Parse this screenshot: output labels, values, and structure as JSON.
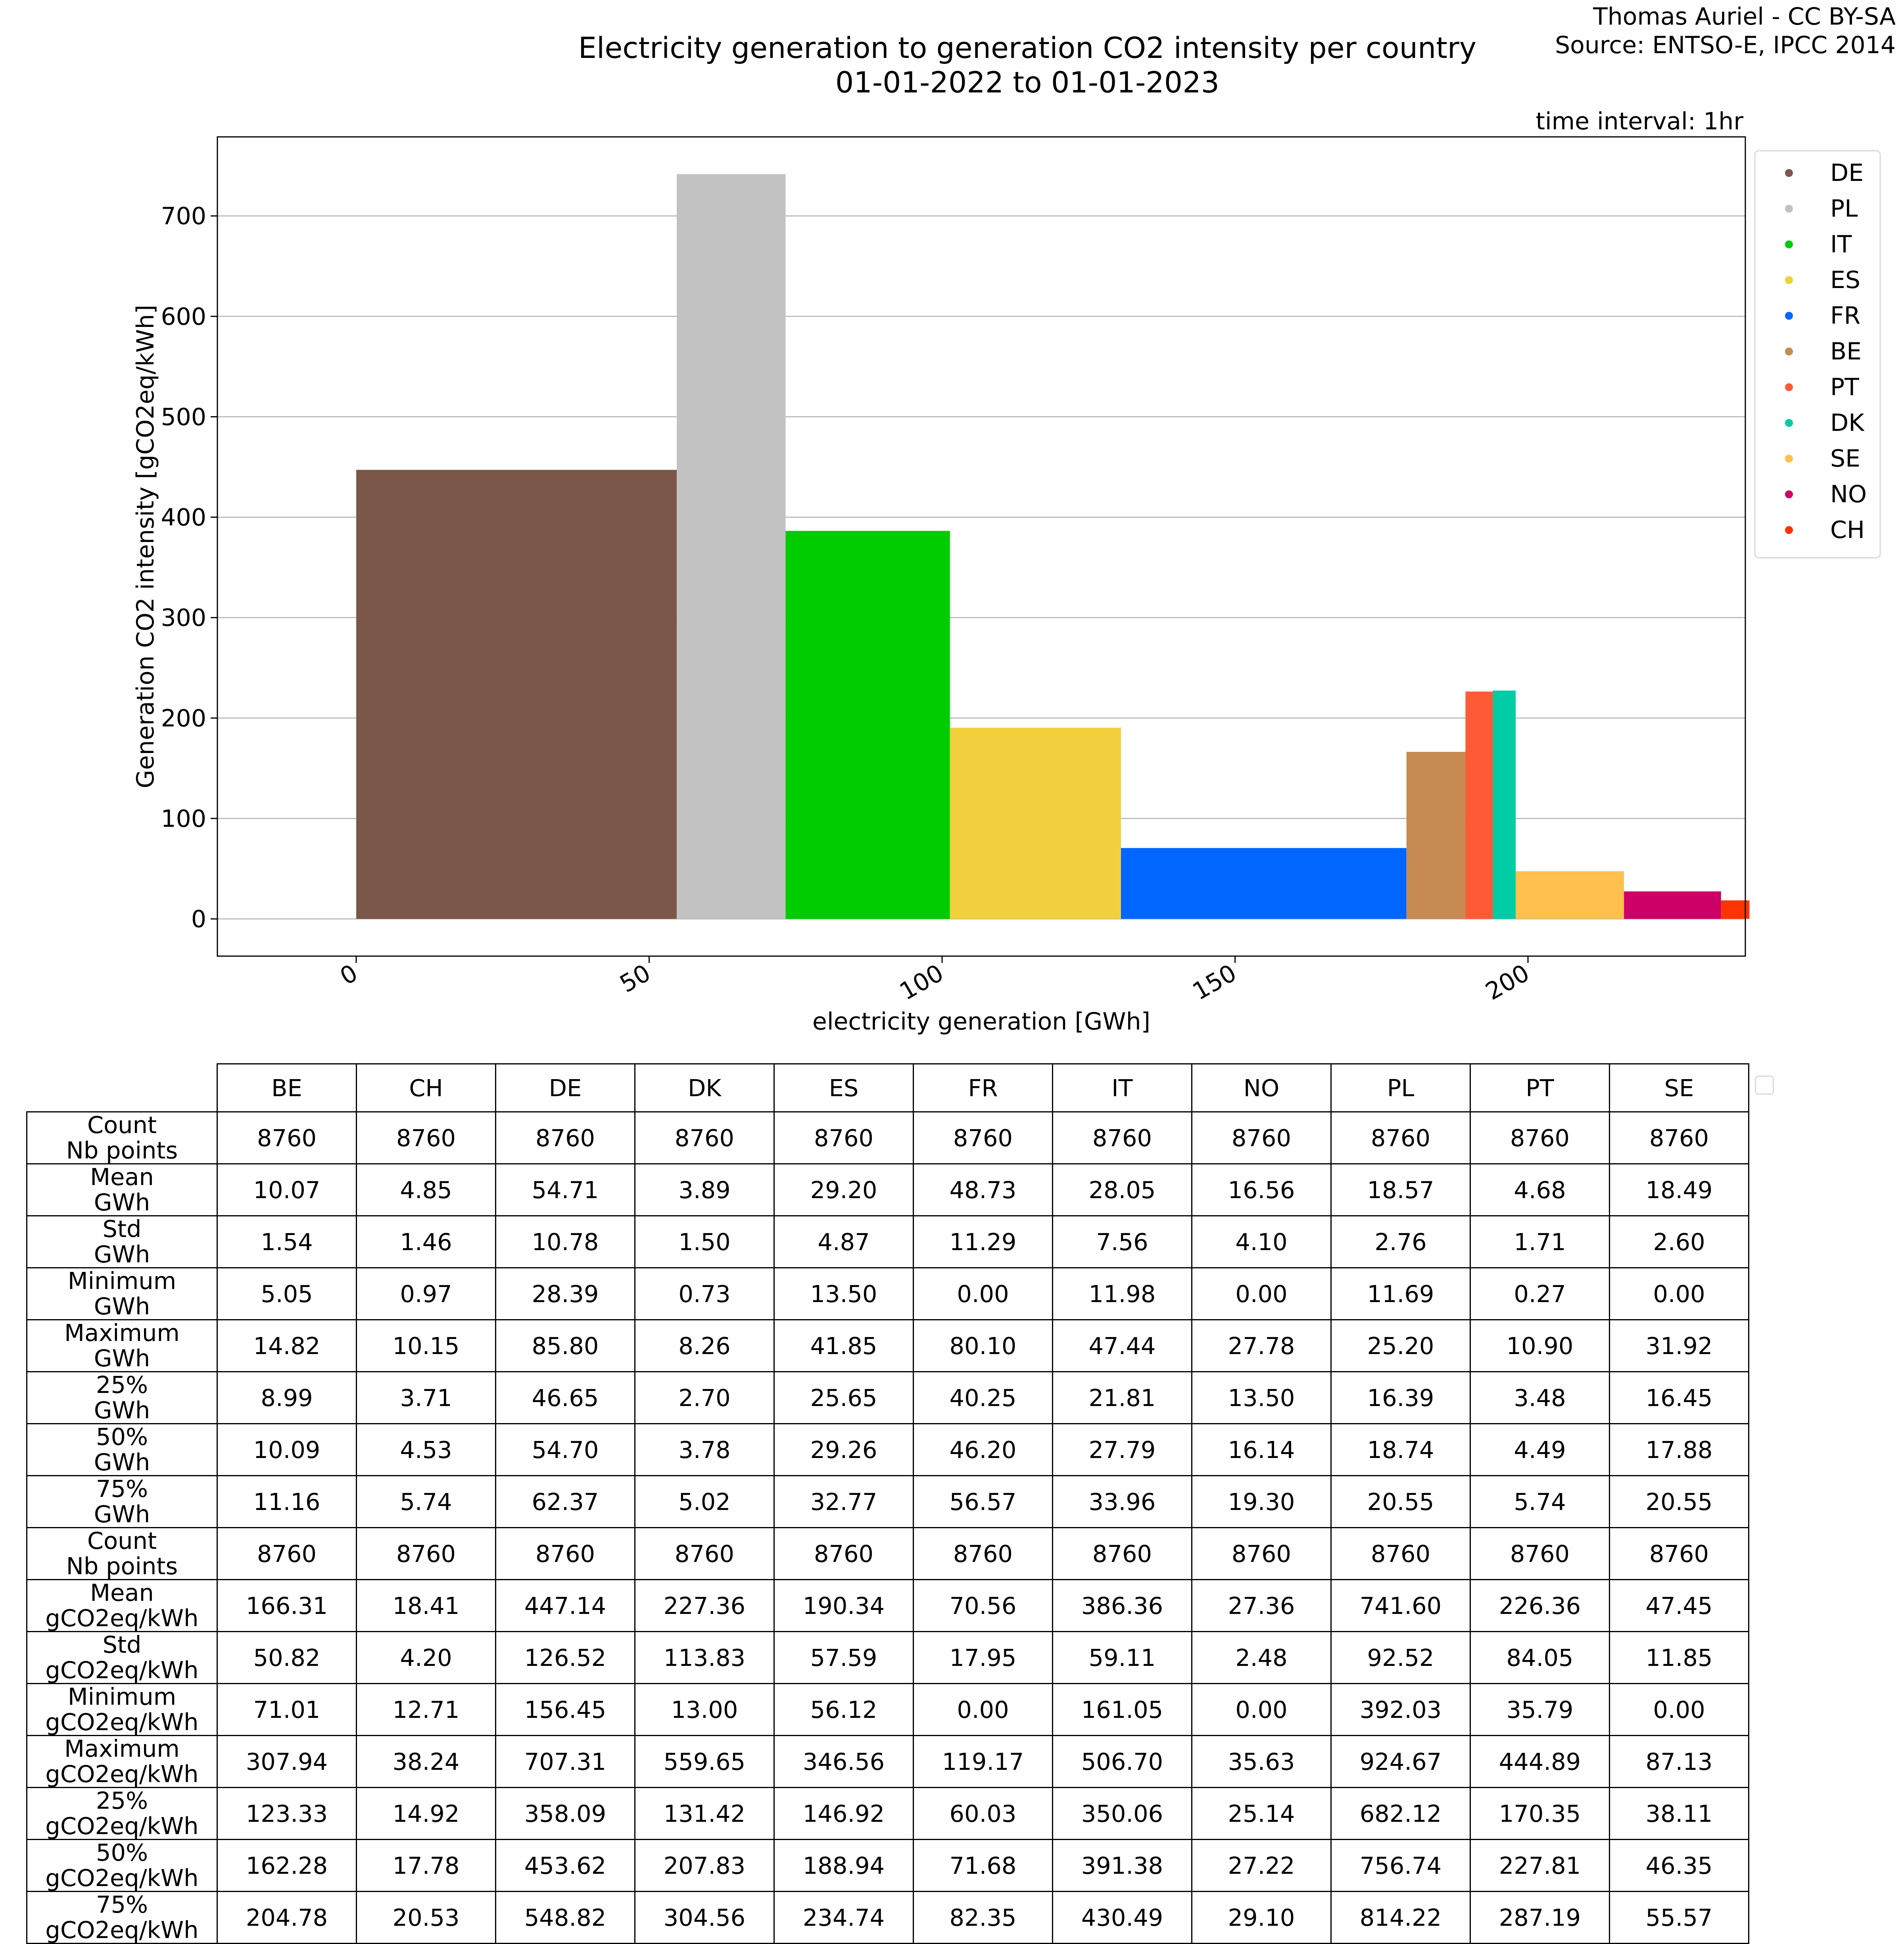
{
  "credit": {
    "line1": "Thomas Auriel - CC BY-SA",
    "line2": "Source: ENTSO-E, IPCC 2014"
  },
  "title": {
    "line1": "Electricity generation to generation CO2 intensity per country",
    "line2": "01-01-2022 to 01-01-2023"
  },
  "time_interval": "time interval: 1hr",
  "chart_data": {
    "type": "bar",
    "xlabel": "electricity generation [GWh]",
    "ylabel": "Generation CO2 intensity [gCO2eq/kWh]",
    "xlim": [
      -23.7,
      237.1
    ],
    "ylim": [
      -37.1,
      778.7
    ],
    "x_ticks": [
      0,
      50,
      100,
      150,
      200
    ],
    "y_ticks": [
      0,
      100,
      200,
      300,
      400,
      500,
      600,
      700
    ],
    "grid": "horizontal",
    "legend_position": "outside-right",
    "series": [
      {
        "name": "DE",
        "x0": 0.0,
        "width": 54.71,
        "value": 447.14,
        "color": "#7a5748"
      },
      {
        "name": "PL",
        "x0": 54.71,
        "width": 18.57,
        "value": 741.6,
        "color": "#c2c2c2"
      },
      {
        "name": "IT",
        "x0": 73.28,
        "width": 28.05,
        "value": 386.36,
        "color": "#00cc00"
      },
      {
        "name": "ES",
        "x0": 101.33,
        "width": 29.2,
        "value": 190.34,
        "color": "#f2cf3c"
      },
      {
        "name": "FR",
        "x0": 130.53,
        "width": 48.73,
        "value": 70.56,
        "color": "#0066ff"
      },
      {
        "name": "BE",
        "x0": 179.26,
        "width": 10.07,
        "value": 166.31,
        "color": "#c68a52"
      },
      {
        "name": "PT",
        "x0": 189.33,
        "width": 4.68,
        "value": 226.36,
        "color": "#ff5a36"
      },
      {
        "name": "DK",
        "x0": 194.01,
        "width": 3.89,
        "value": 227.36,
        "color": "#00cca6"
      },
      {
        "name": "SE",
        "x0": 197.9,
        "width": 18.49,
        "value": 47.45,
        "color": "#ffc04d"
      },
      {
        "name": "NO",
        "x0": 216.39,
        "width": 16.56,
        "value": 27.36,
        "color": "#cc0066"
      },
      {
        "name": "CH",
        "x0": 232.95,
        "width": 4.85,
        "value": 18.41,
        "color": "#ff3300"
      }
    ]
  },
  "table": {
    "columns": [
      "BE",
      "CH",
      "DE",
      "DK",
      "ES",
      "FR",
      "IT",
      "NO",
      "PL",
      "PT",
      "SE"
    ],
    "rows": [
      {
        "label1": "Count",
        "label2": "Nb points",
        "values": [
          "8760",
          "8760",
          "8760",
          "8760",
          "8760",
          "8760",
          "8760",
          "8760",
          "8760",
          "8760",
          "8760"
        ]
      },
      {
        "label1": "Mean",
        "label2": "GWh",
        "values": [
          "10.07",
          "4.85",
          "54.71",
          "3.89",
          "29.20",
          "48.73",
          "28.05",
          "16.56",
          "18.57",
          "4.68",
          "18.49"
        ]
      },
      {
        "label1": "Std",
        "label2": "GWh",
        "values": [
          "1.54",
          "1.46",
          "10.78",
          "1.50",
          "4.87",
          "11.29",
          "7.56",
          "4.10",
          "2.76",
          "1.71",
          "2.60"
        ]
      },
      {
        "label1": "Minimum",
        "label2": "GWh",
        "values": [
          "5.05",
          "0.97",
          "28.39",
          "0.73",
          "13.50",
          "0.00",
          "11.98",
          "0.00",
          "11.69",
          "0.27",
          "0.00"
        ]
      },
      {
        "label1": "Maximum",
        "label2": "GWh",
        "values": [
          "14.82",
          "10.15",
          "85.80",
          "8.26",
          "41.85",
          "80.10",
          "47.44",
          "27.78",
          "25.20",
          "10.90",
          "31.92"
        ]
      },
      {
        "label1": "25%",
        "label2": "GWh",
        "values": [
          "8.99",
          "3.71",
          "46.65",
          "2.70",
          "25.65",
          "40.25",
          "21.81",
          "13.50",
          "16.39",
          "3.48",
          "16.45"
        ]
      },
      {
        "label1": "50%",
        "label2": "GWh",
        "values": [
          "10.09",
          "4.53",
          "54.70",
          "3.78",
          "29.26",
          "46.20",
          "27.79",
          "16.14",
          "18.74",
          "4.49",
          "17.88"
        ]
      },
      {
        "label1": "75%",
        "label2": "GWh",
        "values": [
          "11.16",
          "5.74",
          "62.37",
          "5.02",
          "32.77",
          "56.57",
          "33.96",
          "19.30",
          "20.55",
          "5.74",
          "20.55"
        ]
      },
      {
        "label1": "Count",
        "label2": "Nb points",
        "values": [
          "8760",
          "8760",
          "8760",
          "8760",
          "8760",
          "8760",
          "8760",
          "8760",
          "8760",
          "8760",
          "8760"
        ]
      },
      {
        "label1": "Mean",
        "label2": "gCO2eq/kWh",
        "values": [
          "166.31",
          "18.41",
          "447.14",
          "227.36",
          "190.34",
          "70.56",
          "386.36",
          "27.36",
          "741.60",
          "226.36",
          "47.45"
        ]
      },
      {
        "label1": "Std",
        "label2": "gCO2eq/kWh",
        "values": [
          "50.82",
          "4.20",
          "126.52",
          "113.83",
          "57.59",
          "17.95",
          "59.11",
          "2.48",
          "92.52",
          "84.05",
          "11.85"
        ]
      },
      {
        "label1": "Minimum",
        "label2": "gCO2eq/kWh",
        "values": [
          "71.01",
          "12.71",
          "156.45",
          "13.00",
          "56.12",
          "0.00",
          "161.05",
          "0.00",
          "392.03",
          "35.79",
          "0.00"
        ]
      },
      {
        "label1": "Maximum",
        "label2": "gCO2eq/kWh",
        "values": [
          "307.94",
          "38.24",
          "707.31",
          "559.65",
          "346.56",
          "119.17",
          "506.70",
          "35.63",
          "924.67",
          "444.89",
          "87.13"
        ]
      },
      {
        "label1": "25%",
        "label2": "gCO2eq/kWh",
        "values": [
          "123.33",
          "14.92",
          "358.09",
          "131.42",
          "146.92",
          "60.03",
          "350.06",
          "25.14",
          "682.12",
          "170.35",
          "38.11"
        ]
      },
      {
        "label1": "50%",
        "label2": "gCO2eq/kWh",
        "values": [
          "162.28",
          "17.78",
          "453.62",
          "207.83",
          "188.94",
          "71.68",
          "391.38",
          "27.22",
          "756.74",
          "227.81",
          "46.35"
        ]
      },
      {
        "label1": "75%",
        "label2": "gCO2eq/kWh",
        "values": [
          "204.78",
          "20.53",
          "548.82",
          "304.56",
          "234.74",
          "82.35",
          "430.49",
          "29.10",
          "814.22",
          "287.19",
          "55.57"
        ]
      }
    ]
  }
}
